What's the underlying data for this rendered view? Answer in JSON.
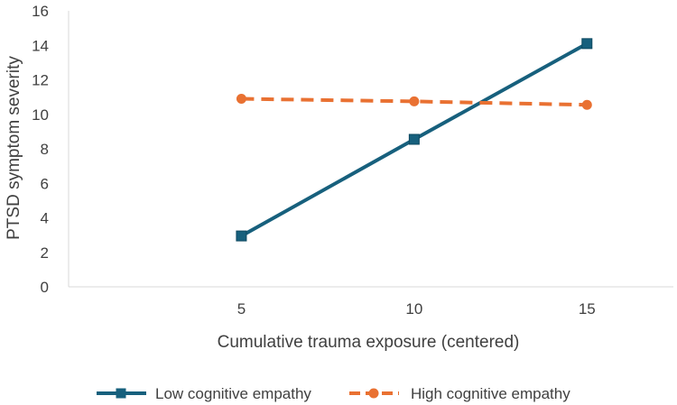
{
  "chart_data": {
    "type": "line",
    "title": "",
    "xlabel": "Cumulative trauma exposure (centered)",
    "ylabel": "PTSD symptom severity",
    "x": [
      5,
      10,
      15
    ],
    "xlim": [
      0,
      17.5
    ],
    "ylim": [
      0,
      16
    ],
    "yticks": [
      "0",
      "2",
      "4",
      "6",
      "8",
      "10",
      "12",
      "14",
      "16"
    ],
    "xticks": [
      "5",
      "10",
      "15"
    ],
    "grid": false,
    "legend_position": "bottom",
    "series": [
      {
        "name": "Low cognitive empathy",
        "values": [
          2.95,
          8.55,
          14.1
        ],
        "color": "#17607D",
        "dash": "solid",
        "marker": "square"
      },
      {
        "name": "High cognitive empathy",
        "values": [
          10.9,
          10.75,
          10.55
        ],
        "color": "#E97132",
        "dash": "dashed",
        "marker": "circle"
      }
    ]
  }
}
